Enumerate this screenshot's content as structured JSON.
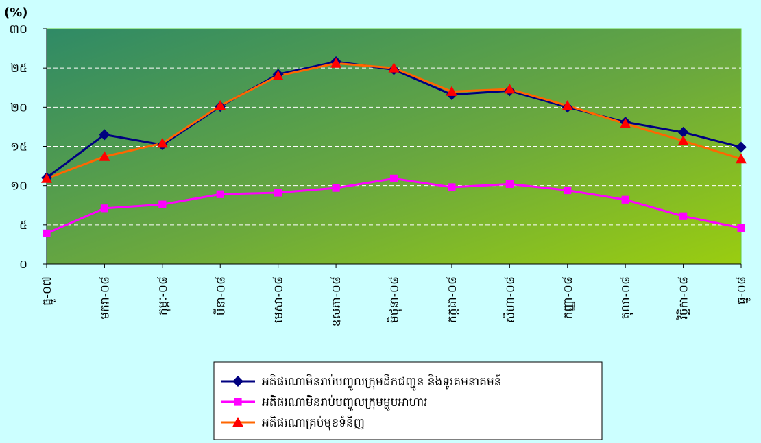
{
  "chart_data": {
    "type": "line",
    "ylabel": "(%)",
    "categories": [
      "ធ្នូ-០៧",
      "មករា-០៨",
      "កុម្ភៈ-០៨",
      "មីនា-០៨",
      "មេសា-០៨",
      "ឧសភា-០៨",
      "មិថុនា-០៨",
      "កក្កដា-០៨",
      "សីហា-០៨",
      "កញ្ញា-០៨",
      "តុលា-០៨",
      "វិច្ឆិកា-០៨",
      "ធ្នូ-០៨"
    ],
    "series": [
      {
        "name": "អតិផរណាមិនរាប់បញ្ចូលក្រុមដឹកជញ្ជូន និងទូរគមនាគមន៍",
        "color": "#000080",
        "marker_color": "#000080",
        "marker": "diamond",
        "values": [
          11,
          16.5,
          15.2,
          20.1,
          24.2,
          25.8,
          24.8,
          21.6,
          22.1,
          20,
          18.1,
          16.8,
          14.9
        ]
      },
      {
        "name": "អតិផរណាមិនរាប់បញ្ចូលក្រុមម្ហូបអាហារ",
        "color": "#ff00ff",
        "marker_color": "#ff00ff",
        "marker": "square",
        "values": [
          3.9,
          7.1,
          7.6,
          8.9,
          9.1,
          9.7,
          10.9,
          9.8,
          10.2,
          9.4,
          8.2,
          6.1,
          4.6
        ]
      },
      {
        "name": "អតិផរណាគ្រប់មុខទំនិញ",
        "color": "#ff6600",
        "marker_color": "#ff0000",
        "marker": "triangle",
        "values": [
          10.9,
          13.7,
          15.4,
          20.2,
          24,
          25.6,
          25,
          22,
          22.3,
          20.2,
          17.9,
          15.7,
          13.4
        ]
      }
    ],
    "ylim": [
      0,
      30
    ],
    "yticks": [
      {
        "value": 0,
        "label": "០"
      },
      {
        "value": 5,
        "label": "៥"
      },
      {
        "value": 10,
        "label": "១០"
      },
      {
        "value": 15,
        "label": "១៥"
      },
      {
        "value": 20,
        "label": "២០"
      },
      {
        "value": 25,
        "label": "២៥"
      },
      {
        "value": 30,
        "label": "៣០"
      }
    ],
    "grid": true
  }
}
